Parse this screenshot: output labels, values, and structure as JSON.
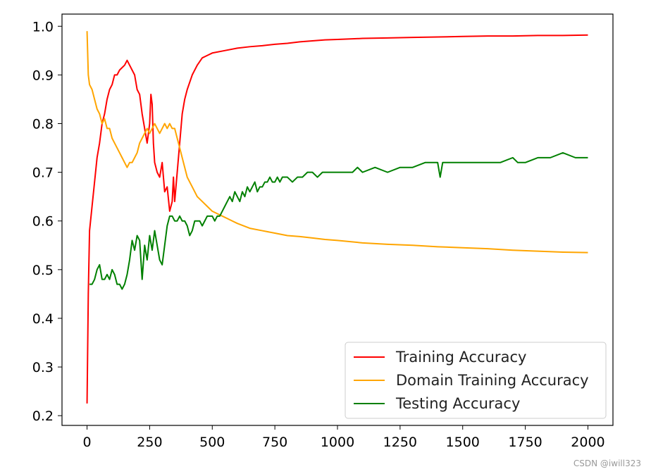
{
  "chart_data": {
    "type": "line",
    "title": "",
    "xlabel": "",
    "ylabel": "",
    "xlim": [
      -100,
      2100
    ],
    "ylim": [
      0.18,
      1.025
    ],
    "xticks": [
      0,
      250,
      500,
      750,
      1000,
      1250,
      1500,
      1750,
      2000
    ],
    "yticks": [
      0.2,
      0.3,
      0.4,
      0.5,
      0.6,
      0.7,
      0.8,
      0.9,
      1.0
    ],
    "xtick_labels": [
      "0",
      "250",
      "500",
      "750",
      "1000",
      "1250",
      "1500",
      "1750",
      "2000"
    ],
    "ytick_labels": [
      "0.2",
      "0.3",
      "0.4",
      "0.5",
      "0.6",
      "0.7",
      "0.8",
      "0.9",
      "1.0"
    ],
    "grid": false,
    "legend_position": "lower-right",
    "series": [
      {
        "name": "Training Accuracy",
        "color": "#ff0000",
        "x": [
          0,
          5,
          10,
          20,
          30,
          40,
          50,
          60,
          70,
          80,
          90,
          100,
          110,
          120,
          130,
          140,
          150,
          160,
          170,
          180,
          190,
          200,
          210,
          220,
          230,
          240,
          250,
          255,
          260,
          265,
          270,
          280,
          290,
          300,
          310,
          320,
          330,
          340,
          345,
          350,
          360,
          370,
          380,
          390,
          400,
          420,
          440,
          460,
          480,
          500,
          550,
          600,
          650,
          700,
          750,
          800,
          850,
          900,
          950,
          1000,
          1100,
          1200,
          1300,
          1400,
          1500,
          1600,
          1700,
          1800,
          1900,
          2000
        ],
        "y": [
          0.225,
          0.45,
          0.58,
          0.63,
          0.68,
          0.73,
          0.76,
          0.8,
          0.82,
          0.85,
          0.87,
          0.88,
          0.9,
          0.9,
          0.91,
          0.915,
          0.92,
          0.93,
          0.92,
          0.91,
          0.9,
          0.87,
          0.86,
          0.82,
          0.79,
          0.76,
          0.8,
          0.86,
          0.84,
          0.76,
          0.72,
          0.7,
          0.69,
          0.72,
          0.66,
          0.67,
          0.62,
          0.64,
          0.69,
          0.64,
          0.7,
          0.76,
          0.82,
          0.85,
          0.87,
          0.9,
          0.92,
          0.935,
          0.94,
          0.945,
          0.95,
          0.955,
          0.958,
          0.96,
          0.963,
          0.965,
          0.968,
          0.97,
          0.972,
          0.973,
          0.975,
          0.976,
          0.977,
          0.978,
          0.979,
          0.98,
          0.98,
          0.981,
          0.981,
          0.982
        ]
      },
      {
        "name": "Domain Training Accuracy",
        "color": "#ffa500",
        "x": [
          0,
          5,
          10,
          20,
          30,
          40,
          50,
          60,
          70,
          80,
          90,
          100,
          110,
          120,
          130,
          140,
          150,
          160,
          170,
          180,
          190,
          200,
          210,
          220,
          230,
          240,
          250,
          260,
          270,
          280,
          290,
          300,
          310,
          320,
          330,
          340,
          350,
          360,
          370,
          380,
          390,
          400,
          420,
          440,
          460,
          480,
          500,
          520,
          540,
          560,
          580,
          600,
          650,
          700,
          750,
          800,
          850,
          900,
          950,
          1000,
          1100,
          1200,
          1300,
          1400,
          1500,
          1600,
          1700,
          1800,
          1900,
          2000
        ],
        "y": [
          0.99,
          0.9,
          0.88,
          0.87,
          0.85,
          0.83,
          0.82,
          0.8,
          0.81,
          0.79,
          0.79,
          0.77,
          0.76,
          0.75,
          0.74,
          0.73,
          0.72,
          0.71,
          0.72,
          0.72,
          0.73,
          0.74,
          0.76,
          0.77,
          0.78,
          0.79,
          0.78,
          0.79,
          0.8,
          0.79,
          0.78,
          0.79,
          0.8,
          0.79,
          0.8,
          0.79,
          0.79,
          0.77,
          0.75,
          0.73,
          0.71,
          0.69,
          0.67,
          0.65,
          0.64,
          0.63,
          0.62,
          0.615,
          0.61,
          0.605,
          0.6,
          0.595,
          0.585,
          0.58,
          0.575,
          0.57,
          0.568,
          0.565,
          0.562,
          0.56,
          0.555,
          0.552,
          0.55,
          0.547,
          0.545,
          0.543,
          0.54,
          0.538,
          0.536,
          0.535
        ]
      },
      {
        "name": "Testing Accuracy",
        "color": "#008000",
        "x": [
          10,
          20,
          30,
          40,
          50,
          60,
          70,
          80,
          90,
          100,
          110,
          120,
          130,
          140,
          150,
          160,
          170,
          180,
          190,
          200,
          210,
          220,
          230,
          240,
          250,
          260,
          270,
          280,
          290,
          300,
          310,
          320,
          330,
          340,
          350,
          360,
          370,
          380,
          390,
          400,
          410,
          420,
          430,
          440,
          450,
          460,
          470,
          480,
          490,
          500,
          510,
          520,
          530,
          540,
          550,
          560,
          570,
          580,
          590,
          600,
          610,
          620,
          630,
          640,
          650,
          660,
          670,
          680,
          690,
          700,
          710,
          720,
          730,
          740,
          750,
          760,
          770,
          780,
          790,
          800,
          820,
          840,
          860,
          880,
          900,
          920,
          940,
          960,
          980,
          1000,
          1020,
          1040,
          1060,
          1080,
          1100,
          1150,
          1200,
          1250,
          1300,
          1350,
          1400,
          1410,
          1420,
          1450,
          1500,
          1550,
          1600,
          1650,
          1700,
          1720,
          1750,
          1800,
          1850,
          1900,
          1950,
          2000
        ],
        "y": [
          0.47,
          0.47,
          0.48,
          0.5,
          0.51,
          0.48,
          0.48,
          0.49,
          0.48,
          0.5,
          0.49,
          0.47,
          0.47,
          0.46,
          0.47,
          0.49,
          0.52,
          0.56,
          0.54,
          0.57,
          0.56,
          0.48,
          0.55,
          0.52,
          0.57,
          0.54,
          0.58,
          0.55,
          0.52,
          0.51,
          0.55,
          0.59,
          0.61,
          0.61,
          0.6,
          0.6,
          0.61,
          0.6,
          0.6,
          0.59,
          0.57,
          0.58,
          0.6,
          0.6,
          0.6,
          0.59,
          0.6,
          0.61,
          0.61,
          0.61,
          0.6,
          0.61,
          0.61,
          0.62,
          0.63,
          0.64,
          0.65,
          0.64,
          0.66,
          0.65,
          0.64,
          0.66,
          0.65,
          0.67,
          0.66,
          0.67,
          0.68,
          0.66,
          0.67,
          0.67,
          0.68,
          0.68,
          0.69,
          0.68,
          0.68,
          0.69,
          0.68,
          0.69,
          0.69,
          0.69,
          0.68,
          0.69,
          0.69,
          0.7,
          0.7,
          0.69,
          0.7,
          0.7,
          0.7,
          0.7,
          0.7,
          0.7,
          0.7,
          0.71,
          0.7,
          0.71,
          0.7,
          0.71,
          0.71,
          0.72,
          0.72,
          0.69,
          0.72,
          0.72,
          0.72,
          0.72,
          0.72,
          0.72,
          0.73,
          0.72,
          0.72,
          0.73,
          0.73,
          0.74,
          0.73,
          0.73
        ]
      }
    ]
  },
  "watermark": "CSDN @iwill323"
}
